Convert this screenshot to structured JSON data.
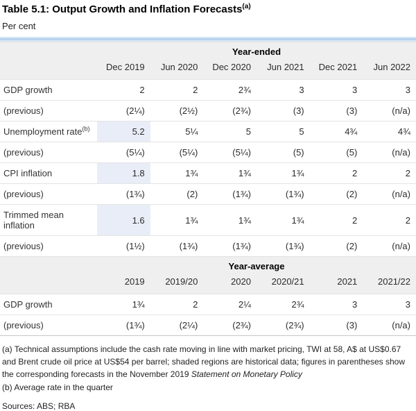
{
  "page": {
    "title": "Table 5.1: Output Growth and Inflation Forecasts",
    "title_sup": "(a)",
    "subtitle": "Per cent",
    "sources": "Sources: ABS; RBA"
  },
  "colors": {
    "top_border_blue": "#b7d2ec",
    "header_band_gray": "#efefef",
    "historical_shading_blue": "#e9edf8"
  },
  "table": {
    "sections": [
      {
        "header": "Year-ended",
        "columns": [
          "Dec 2019",
          "Jun 2020",
          "Dec 2020",
          "Jun 2021",
          "Dec 2021",
          "Jun 2022"
        ],
        "rows": [
          {
            "label": "GDP growth",
            "sup": "",
            "values": [
              "2",
              "2",
              "2¾",
              "3",
              "3",
              "3"
            ],
            "shaded": []
          },
          {
            "label": "(previous)",
            "sup": "",
            "values": [
              "(2¼)",
              "(2½)",
              "(2¾)",
              "(3)",
              "(3)",
              "(n/a)"
            ],
            "shaded": []
          },
          {
            "label": "Unemployment rate",
            "sup": "(b)",
            "values": [
              "5.2",
              "5¼",
              "5",
              "5",
              "4¾",
              "4¾"
            ],
            "shaded": [
              0
            ]
          },
          {
            "label": "(previous)",
            "sup": "",
            "values": [
              "(5¼)",
              "(5¼)",
              "(5¼)",
              "(5)",
              "(5)",
              "(n/a)"
            ],
            "shaded": []
          },
          {
            "label": "CPI inflation",
            "sup": "",
            "values": [
              "1.8",
              "1¾",
              "1¾",
              "1¾",
              "2",
              "2"
            ],
            "shaded": [
              0
            ]
          },
          {
            "label": "(previous)",
            "sup": "",
            "values": [
              "(1¾)",
              "(2)",
              "(1¾)",
              "(1¾)",
              "(2)",
              "(n/a)"
            ],
            "shaded": []
          },
          {
            "label": "Trimmed mean inflation",
            "sup": "",
            "values": [
              "1.6",
              "1¾",
              "1¾",
              "1¾",
              "2",
              "2"
            ],
            "shaded": [
              0
            ]
          },
          {
            "label": "(previous)",
            "sup": "",
            "values": [
              "(1½)",
              "(1¾)",
              "(1¾)",
              "(1¾)",
              "(2)",
              "(n/a)"
            ],
            "shaded": []
          }
        ]
      },
      {
        "header": "Year-average",
        "columns": [
          "2019",
          "2019/20",
          "2020",
          "2020/21",
          "2021",
          "2021/22"
        ],
        "rows": [
          {
            "label": "GDP growth",
            "sup": "",
            "values": [
              "1¾",
              "2",
              "2¼",
              "2¾",
              "3",
              "3"
            ],
            "shaded": []
          },
          {
            "label": "(previous)",
            "sup": "",
            "values": [
              "(1¾)",
              "(2¼)",
              "(2¾)",
              "(2¾)",
              "(3)",
              "(n/a)"
            ],
            "shaded": []
          }
        ]
      }
    ],
    "footnotes": [
      {
        "text": "(a) Technical assumptions include the cash rate moving in line with market pricing, TWI at 58, A$ at US$0.67 and Brent crude oil price at US$54 per barrel; shaded regions are historical data; figures in parentheses show the corresponding forecasts in the November 2019 ",
        "italic": "Statement on Monetary Policy"
      },
      {
        "text": "(b) Average rate in the quarter",
        "italic": ""
      }
    ]
  }
}
